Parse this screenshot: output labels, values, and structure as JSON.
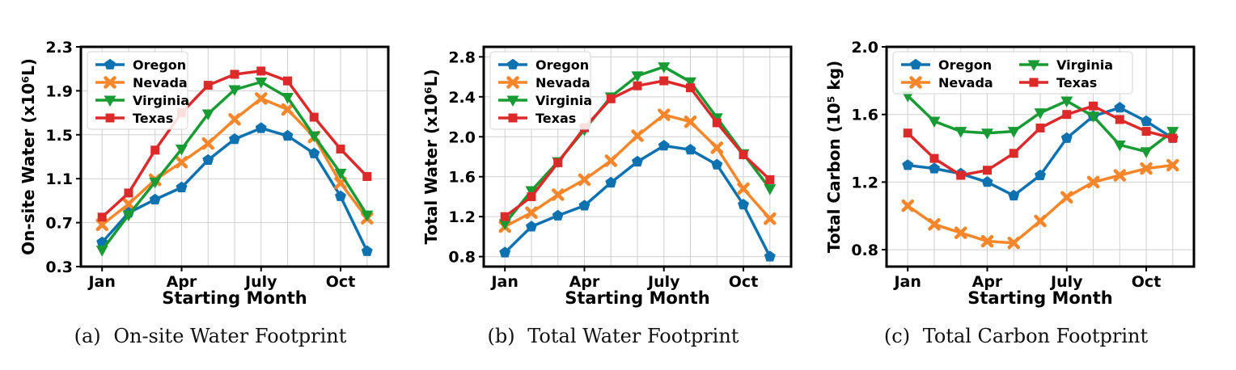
{
  "chart_data": [
    {
      "type": "line",
      "caption": {
        "label": "(a)",
        "text": "On-site Water Footprint"
      },
      "xlabel": "Starting Month",
      "ylabel": "On-site Water (x10⁶L)",
      "ylim": [
        0.3,
        2.3
      ],
      "yticks": [
        "0.3",
        "0.7",
        "1.1",
        "1.5",
        "1.9",
        "2.3"
      ],
      "xticks": [
        {
          "pos": 1,
          "label": "Jan"
        },
        {
          "pos": 4,
          "label": "Apr"
        },
        {
          "pos": 7,
          "label": "July"
        },
        {
          "pos": 10,
          "label": "Oct"
        }
      ],
      "xlim": [
        0.2,
        11.8
      ],
      "x": [
        1,
        2,
        3,
        4,
        5,
        6,
        7,
        8,
        9,
        10,
        11
      ],
      "grid": true,
      "legend": {
        "placement": "top-left",
        "columns": 1
      },
      "series": [
        {
          "name": "Oregon",
          "values": [
            0.52,
            0.79,
            0.91,
            1.02,
            1.27,
            1.46,
            1.56,
            1.49,
            1.33,
            0.94,
            0.44
          ]
        },
        {
          "name": "Nevada",
          "values": [
            0.68,
            0.87,
            1.09,
            1.25,
            1.42,
            1.64,
            1.83,
            1.73,
            1.48,
            1.06,
            0.74
          ]
        },
        {
          "name": "Virginia",
          "values": [
            0.45,
            0.77,
            1.07,
            1.37,
            1.69,
            1.91,
            1.98,
            1.84,
            1.49,
            1.15,
            0.77
          ]
        },
        {
          "name": "Texas",
          "values": [
            0.75,
            0.97,
            1.36,
            1.7,
            1.95,
            2.05,
            2.08,
            1.99,
            1.66,
            1.37,
            1.12
          ]
        }
      ]
    },
    {
      "type": "line",
      "caption": {
        "label": "(b)",
        "text": "Total Water Footprint"
      },
      "xlabel": "Starting Month",
      "ylabel": "Total Water (x10⁶L)",
      "ylim": [
        0.7,
        2.9
      ],
      "yticks": [
        "0.8",
        "1.2",
        "1.6",
        "2.0",
        "2.4",
        "2.8"
      ],
      "xticks": [
        {
          "pos": 1,
          "label": "Jan"
        },
        {
          "pos": 4,
          "label": "Apr"
        },
        {
          "pos": 7,
          "label": "July"
        },
        {
          "pos": 10,
          "label": "Oct"
        }
      ],
      "xlim": [
        0.2,
        11.8
      ],
      "x": [
        1,
        2,
        3,
        4,
        5,
        6,
        7,
        8,
        9,
        10,
        11
      ],
      "grid": true,
      "legend": {
        "placement": "top-left",
        "columns": 1
      },
      "series": [
        {
          "name": "Oregon",
          "values": [
            0.84,
            1.1,
            1.21,
            1.31,
            1.54,
            1.75,
            1.91,
            1.87,
            1.72,
            1.32,
            0.8
          ]
        },
        {
          "name": "Nevada",
          "values": [
            1.1,
            1.24,
            1.42,
            1.57,
            1.76,
            2.01,
            2.22,
            2.15,
            1.89,
            1.48,
            1.18
          ]
        },
        {
          "name": "Virginia",
          "values": [
            1.13,
            1.46,
            1.75,
            2.07,
            2.4,
            2.61,
            2.7,
            2.55,
            2.19,
            1.83,
            1.48
          ]
        },
        {
          "name": "Texas",
          "values": [
            1.2,
            1.4,
            1.74,
            2.09,
            2.38,
            2.51,
            2.56,
            2.49,
            2.14,
            1.82,
            1.57
          ]
        }
      ]
    },
    {
      "type": "line",
      "caption": {
        "label": "(c)",
        "text": "Total Carbon Footprint"
      },
      "xlabel": "Starting Month",
      "ylabel": "Total Carbon (10⁵ kg)",
      "ylim": [
        0.7,
        2.0
      ],
      "yticks": [
        "0.8",
        "1.2",
        "1.6",
        "2.0"
      ],
      "xticks": [
        {
          "pos": 1,
          "label": "Jan"
        },
        {
          "pos": 4,
          "label": "Apr"
        },
        {
          "pos": 7,
          "label": "July"
        },
        {
          "pos": 10,
          "label": "Oct"
        }
      ],
      "xlim": [
        0.2,
        11.8
      ],
      "x": [
        1,
        2,
        3,
        4,
        5,
        6,
        7,
        8,
        9,
        10,
        11
      ],
      "grid": true,
      "legend": {
        "placement": "top",
        "columns": 2
      },
      "series": [
        {
          "name": "Oregon",
          "values": [
            1.3,
            1.28,
            1.25,
            1.2,
            1.12,
            1.24,
            1.46,
            1.59,
            1.64,
            1.56,
            1.46
          ]
        },
        {
          "name": "Nevada",
          "values": [
            1.06,
            0.95,
            0.9,
            0.85,
            0.84,
            0.97,
            1.11,
            1.2,
            1.24,
            1.28,
            1.3
          ]
        },
        {
          "name": "Virginia",
          "values": [
            1.71,
            1.56,
            1.5,
            1.49,
            1.5,
            1.61,
            1.68,
            1.59,
            1.42,
            1.38,
            1.5
          ]
        },
        {
          "name": "Texas",
          "values": [
            1.49,
            1.34,
            1.24,
            1.27,
            1.37,
            1.52,
            1.6,
            1.65,
            1.57,
            1.5,
            1.46
          ]
        }
      ]
    }
  ],
  "colors": {
    "Oregon": "#0f72b0",
    "Nevada": "#f7862a",
    "Virginia": "#189b33",
    "Texas": "#dc2a2b"
  },
  "markers": {
    "Oregon": "pentagon",
    "Nevada": "x",
    "Virginia": "triangle-down",
    "Texas": "square"
  }
}
